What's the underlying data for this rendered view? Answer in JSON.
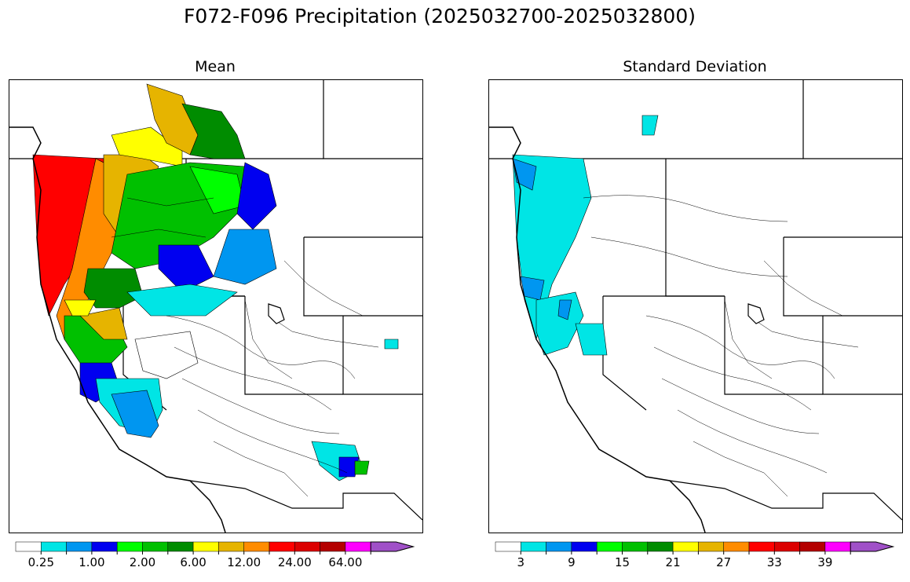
{
  "title": "F072-F096 Precipitation (2025032700-2025032800)",
  "panels": [
    {
      "id": "mean",
      "title": "Mean",
      "colorbar": {
        "colors": [
          "#ffffff",
          "#00e5e5",
          "#0096f0",
          "#0000f0",
          "#00ff00",
          "#00c000",
          "#008c00",
          "#ffff00",
          "#e6b400",
          "#ff8c00",
          "#ff0000",
          "#dc0000",
          "#b40000",
          "#ff00ff",
          "#a050c8"
        ],
        "tick_labels": [
          "0.25",
          "1.00",
          "2.00",
          "6.00",
          "12.00",
          "24.00",
          "64.00"
        ]
      }
    },
    {
      "id": "stddev",
      "title": "Standard Deviation",
      "colorbar": {
        "colors": [
          "#ffffff",
          "#00e5e5",
          "#0096f0",
          "#0000f0",
          "#00ff00",
          "#00c000",
          "#008c00",
          "#ffff00",
          "#e6b400",
          "#ff8c00",
          "#ff0000",
          "#dc0000",
          "#b40000",
          "#ff00ff",
          "#a050c8"
        ],
        "tick_labels": [
          "3",
          "9",
          "15",
          "21",
          "27",
          "33",
          "39"
        ]
      }
    }
  ]
}
